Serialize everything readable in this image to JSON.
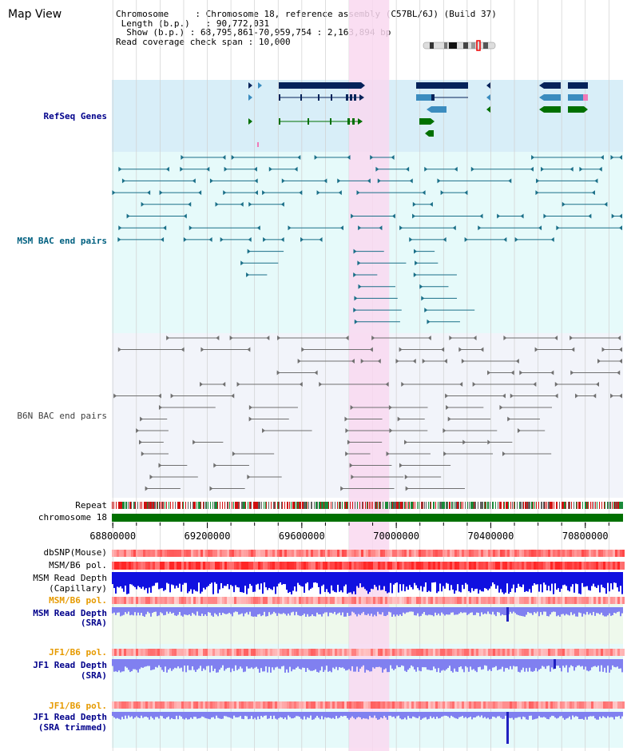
{
  "page": {
    "title": "Map View"
  },
  "info": {
    "chromosome_key": "Chromosome",
    "chromosome_val": "Chromosome 18, reference assembly (C57BL/6J) (Build 37)",
    "length_key": "Length (b.p.)",
    "length_val": "90,772,031",
    "show_key": "Show (b.p.)",
    "show_val": "68,795,861-70,959,754 : 2,163,894 bp",
    "coverage_key": "Read coverage check span",
    "coverage_val": "10,000"
  },
  "tracks": {
    "refseq": "RefSeq Genes",
    "msm_bac": "MSM BAC end pairs",
    "b6n_bac": "B6N BAC end pairs",
    "repeat": "Repeat",
    "chromosome": "chromosome 18",
    "dbsnp": "dbSNP(Mouse)",
    "msm_b6_pol_1": "MSM/B6 pol.",
    "msm_depth_cap_1": "MSM Read Depth",
    "msm_depth_cap_2": "(Capillary)",
    "msm_b6_pol_2": "MSM/B6 pol.",
    "msm_depth_sra_1": "MSM Read Depth",
    "msm_depth_sra_2": "(SRA)",
    "jf1_b6_pol_1": "JF1/B6 pol.",
    "jf1_depth_sra_1": "JF1 Read Depth",
    "jf1_depth_sra_2": "(SRA)",
    "jf1_b6_pol_2": "JF1/B6 pol.",
    "jf1_depth_trim_1": "JF1 Read Depth",
    "jf1_depth_trim_2": "(SRA trimmed)"
  },
  "axis": {
    "range": [
      68795861,
      70959754
    ],
    "ticks": [
      68800000,
      69200000,
      69600000,
      70000000,
      70400000,
      70800000
    ],
    "tick_labels": [
      "68800000",
      "69200000",
      "69600000",
      "70000000",
      "70400000",
      "70800000"
    ],
    "highlight": [
      69800000,
      69970000
    ]
  },
  "colors": {
    "track_label": "#00008b",
    "msm_label": "#006080",
    "b6n_label": "#404040",
    "pol_label": "#e69a00",
    "depth_label": "#00008b",
    "highlight": "#f9d8f0",
    "refseq_bg": "#d8eef8",
    "msm_bg": "#e6fafa",
    "b6n_bg": "#f2f4fa",
    "chromosome_bar": "#007000",
    "gene_dark": "#06235a",
    "gene_mid": "#3b8cbf",
    "gene_green": "#007000",
    "msm_line": "#1a6f88",
    "b6n_line": "#707070",
    "depth_blue": "#1010e0",
    "depth_light": "#8080f0"
  }
}
